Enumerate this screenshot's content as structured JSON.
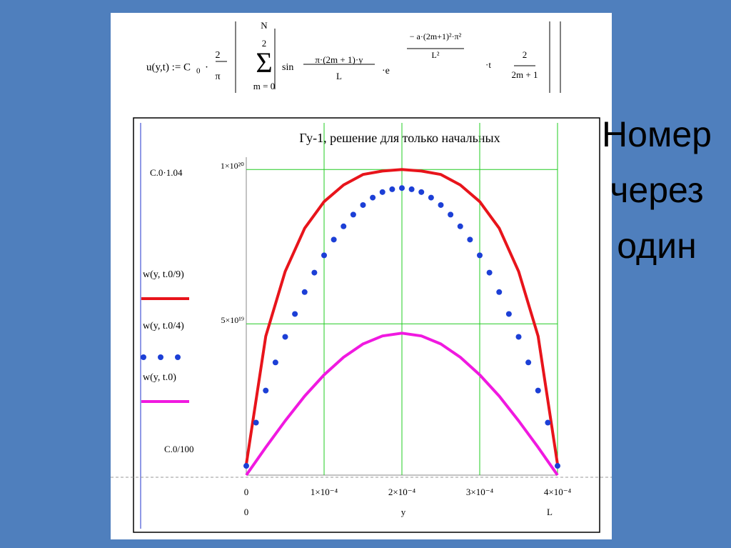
{
  "formula": [
    "u(y,t) := C",
    "0",
    "·",
    "2",
    "π",
    "N",
    "2",
    "Σ",
    "m = 0",
    "sin",
    "π·(2m + 1)·y",
    "L",
    "·e",
    "− a·(2m+1)²·π²",
    "L²",
    "·t",
    "2",
    "2m + 1"
  ],
  "side_text": [
    "Номер",
    "через",
    "один"
  ],
  "chart_data": {
    "type": "line",
    "title": "Гу-1, решение для только начальных",
    "x_label": "y",
    "x_left_label": "0",
    "x_right_label": "L",
    "y_top_label": "C.0·1.04",
    "y_bottom_label": "C.0/100",
    "xlim": [
      0,
      0.0004
    ],
    "ylim": [
      1e+18,
      1.04e+20
    ],
    "xticks": [
      0,
      {
        "value": 0.0001,
        "label": "1×10⁻⁴"
      },
      {
        "value": 0.0002,
        "label": "2×10⁻⁴"
      },
      {
        "value": 0.0003,
        "label": "3×10⁻⁴"
      },
      {
        "value": 0.0004,
        "label": "4×10⁻⁴"
      }
    ],
    "yticks": [
      {
        "value": 5e+19,
        "label": "5×10¹⁹"
      },
      {
        "value": 1e+20,
        "label": "1×10²⁰"
      }
    ],
    "grid": true,
    "series": [
      {
        "name": "w(y, t.0/9)",
        "color": "#e8141b",
        "style": "line",
        "x": [
          0,
          2.5e-05,
          5e-05,
          7.5e-05,
          0.0001,
          0.000125,
          0.00015,
          0.000175,
          0.0002,
          0.000225,
          0.00025,
          0.000275,
          0.0003,
          0.000325,
          0.00035,
          0.000375,
          0.0004
        ],
        "values": [
          4.5e+18,
          4.6e+19,
          6.7e+19,
          8.1e+19,
          8.96e+19,
          9.5e+19,
          9.84e+19,
          9.95e+19,
          1e+20,
          9.95e+19,
          9.84e+19,
          9.5e+19,
          8.96e+19,
          8.1e+19,
          6.7e+19,
          4.6e+19,
          4.5e+18
        ]
      },
      {
        "name": "w(y, t.0/4)",
        "color": "#1c3fd6",
        "style": "dots",
        "x": [
          0,
          1.25e-05,
          2.5e-05,
          3.75e-05,
          5e-05,
          6.25e-05,
          7.5e-05,
          8.75e-05,
          0.0001,
          0.0001125,
          0.000125,
          0.0001375,
          0.00015,
          0.0001625,
          0.000175,
          0.0001875,
          0.0002,
          0.0002125,
          0.000225,
          0.0002375,
          0.00025,
          0.0002625,
          0.000275,
          0.0002875,
          0.0003,
          0.0003125,
          0.000325,
          0.0003375,
          0.00035,
          0.0003625,
          0.000375,
          0.0003875,
          0.0004
        ],
        "values": [
          4e+18,
          1.8e+19,
          2.84e+19,
          3.75e+19,
          4.58e+19,
          5.32e+19,
          6.03e+19,
          6.66e+19,
          7.22e+19,
          7.73e+19,
          8.16e+19,
          8.54e+19,
          8.85e+19,
          9.09e+19,
          9.27e+19,
          9.36e+19,
          9.4e+19,
          9.36e+19,
          9.27e+19,
          9.09e+19,
          8.85e+19,
          8.54e+19,
          8.16e+19,
          7.73e+19,
          7.22e+19,
          6.66e+19,
          6.03e+19,
          5.32e+19,
          4.58e+19,
          3.75e+19,
          2.84e+19,
          1.8e+19,
          4e+18
        ]
      },
      {
        "name": "w(y, t.0)",
        "color": "#f019e0",
        "style": "line",
        "x": [
          0,
          2.5e-05,
          5e-05,
          7.5e-05,
          0.0001,
          0.000125,
          0.00015,
          0.000175,
          0.0002,
          0.000225,
          0.00025,
          0.000275,
          0.0003,
          0.000325,
          0.00035,
          0.000375,
          0.0004
        ],
        "values": [
          1e+18,
          1e+19,
          1.86e+19,
          2.66e+19,
          3.35e+19,
          3.92e+19,
          4.35e+19,
          4.61e+19,
          4.7e+19,
          4.61e+19,
          4.35e+19,
          3.92e+19,
          3.35e+19,
          2.66e+19,
          1.86e+19,
          1e+19,
          1e+18
        ]
      }
    ]
  }
}
